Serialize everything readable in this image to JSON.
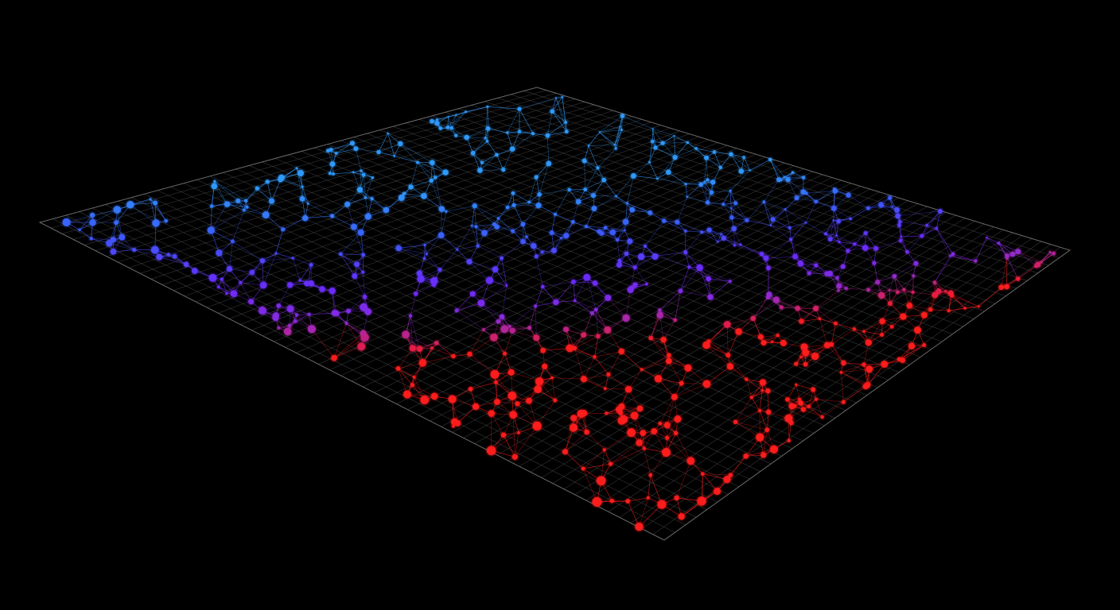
{
  "scene": {
    "background_color": "#000000",
    "grid_line_color": "#5f5f5f",
    "grid_frame_color": "#8a8a8a",
    "palette": {
      "cyan_blue": "#2f9bff",
      "deep_blue": "#3b5bff",
      "violet": "#6a2cff",
      "purple": "#8a2be2",
      "red": "#ff1a1a"
    },
    "glow": true
  }
}
